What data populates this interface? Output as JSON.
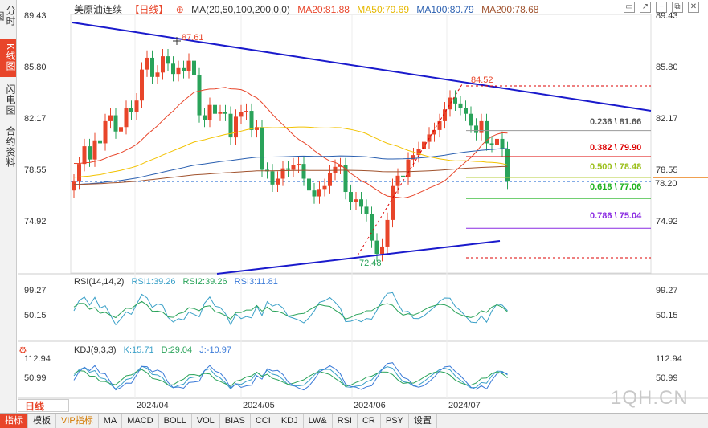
{
  "sidebar": {
    "tabs": [
      {
        "label": "分时图",
        "active": false
      },
      {
        "label": "K线图",
        "active": true
      },
      {
        "label": "闪电图",
        "active": false
      },
      {
        "label": "合约资料",
        "active": false
      }
    ]
  },
  "header": {
    "title": "美原油连续",
    "period_tag": "【日线】",
    "ma_label": "MA(20,50,100,200,0,0)",
    "ma20": "MA20:81.88",
    "ma50": "MA50:79.69",
    "ma100": "MA100:80.79",
    "ma200": "MA200:78.68"
  },
  "colors": {
    "up": "#e8452a",
    "down": "#2aa35a",
    "ma20": "#e8452a",
    "ma50": "#f2c200",
    "ma100": "#2a5fb0",
    "ma200": "#a0522d",
    "trend": "#1a1acc"
  },
  "price_axis": {
    "ticks": [
      "89.43",
      "85.80",
      "82.17",
      "78.55",
      "74.92"
    ],
    "current": "78.20"
  },
  "annotations": {
    "high1": "87.61",
    "high2": "84.52",
    "low": "72.48"
  },
  "fib": [
    {
      "label": "0.236 \\ 81.66",
      "color": "#555"
    },
    {
      "label": "0.382 \\ 79.90",
      "color": "#d00"
    },
    {
      "label": "0.500 \\ 78.48",
      "color": "#9bbf1a"
    },
    {
      "label": "0.618 \\ 77.06",
      "color": "#1fb21f"
    },
    {
      "label": "0.786 \\ 75.04",
      "color": "#8a2be2"
    }
  ],
  "rsi": {
    "title": "RSI(14,14,2)",
    "rsi1": "RSI1:39.26",
    "rsi2": "RSI2:39.26",
    "rsi3": "RSI3:11.81",
    "ticks": [
      "99.27",
      "50.15"
    ]
  },
  "kdj": {
    "title": "KDJ(9,3,3)",
    "k": "K:15.71",
    "d": "D:29.04",
    "j": "J:-10.97",
    "ticks": [
      "112.94",
      "50.99"
    ]
  },
  "dates": [
    "2024/04",
    "2024/05",
    "2024/06",
    "2024/07"
  ],
  "period_button": "日线",
  "toolbar": [
    "指标",
    "模板",
    "VIP指标",
    "MA",
    "MACD",
    "BOLL",
    "VOL",
    "BIAS",
    "CCI",
    "KDJ",
    "LW&",
    "RSI",
    "CR",
    "PSY",
    "设置"
  ],
  "watermark": "1QH.CN",
  "chart_data": {
    "type": "candlestick",
    "title": "美原油连续 日线",
    "ylim": [
      72.0,
      89.43
    ],
    "note": "approximate daily closes Mar–Jul 2024",
    "closes": [
      78.2,
      79.4,
      80.6,
      79.7,
      81.0,
      80.8,
      82.3,
      82.7,
      81.6,
      81.9,
      83.2,
      82.9,
      83.7,
      85.8,
      86.6,
      85.3,
      85.6,
      86.7,
      86.2,
      85.5,
      85.9,
      85.7,
      86.4,
      85.4,
      82.7,
      82.4,
      83.4,
      82.8,
      82.9,
      82.8,
      81.2,
      82.6,
      82.9,
      83.0,
      81.7,
      81.9,
      79.0,
      78.9,
      78.0,
      78.4,
      79.1,
      79.0,
      79.3,
      79.4,
      78.4,
      77.6,
      77.2,
      77.7,
      77.9,
      78.8,
      79.2,
      79.3,
      77.5,
      76.8,
      77.0,
      76.5,
      76.0,
      74.2,
      73.3,
      73.8,
      75.6,
      77.9,
      78.6,
      78.5,
      79.7,
      80.0,
      80.4,
      80.9,
      81.4,
      81.7,
      82.3,
      83.1,
      83.9,
      83.5,
      83.2,
      82.8,
      82.0,
      81.5,
      82.3,
      80.8,
      80.7,
      81.1,
      80.4,
      78.2
    ]
  }
}
